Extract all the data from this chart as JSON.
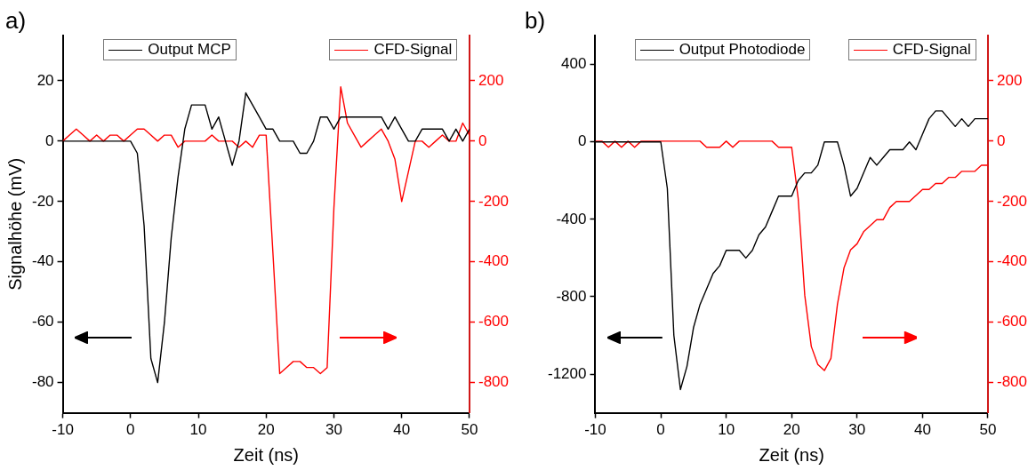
{
  "chart_data": [
    {
      "type": "line",
      "annotations": [
        "a)"
      ],
      "xlabel": "Zeit (ns)",
      "ylabel": "Signalhöhe (mV)",
      "x": [
        -10,
        -9,
        -8,
        -7,
        -6,
        -5,
        -4,
        -3,
        -2,
        -1,
        0,
        1,
        2,
        3,
        4,
        5,
        6,
        7,
        8,
        9,
        10,
        11,
        12,
        13,
        14,
        15,
        16,
        17,
        18,
        19,
        20,
        21,
        22,
        23,
        24,
        25,
        26,
        27,
        28,
        29,
        30,
        31,
        32,
        33,
        34,
        35,
        36,
        37,
        38,
        39,
        40,
        41,
        42,
        43,
        44,
        45,
        46,
        47,
        48,
        49,
        50
      ],
      "series": [
        {
          "name": "Output MCP",
          "color": "#000000",
          "values": [
            0,
            0,
            0,
            0,
            0,
            0,
            0,
            0,
            0,
            0,
            0,
            -4,
            -28,
            -72,
            -80,
            -60,
            -32,
            -12,
            4,
            12,
            12,
            12,
            4,
            8,
            0,
            -8,
            0,
            16,
            12,
            8,
            4,
            4,
            0,
            0,
            0,
            -4,
            -4,
            0,
            8,
            8,
            4,
            8,
            8,
            8,
            8,
            8,
            8,
            8,
            4,
            8,
            4,
            0,
            0,
            4,
            4,
            4,
            4,
            0,
            4,
            0,
            4
          ]
        },
        {
          "name": "CFD-Signal",
          "color": "#ff0000",
          "axis": "y2",
          "values": [
            0,
            20,
            40,
            20,
            0,
            20,
            0,
            20,
            20,
            0,
            20,
            40,
            40,
            20,
            0,
            20,
            20,
            -20,
            0,
            0,
            0,
            0,
            20,
            0,
            0,
            0,
            -20,
            0,
            -20,
            20,
            20,
            -370,
            -770,
            -750,
            -730,
            -730,
            -750,
            -750,
            -770,
            -750,
            -220,
            180,
            60,
            20,
            -20,
            0,
            20,
            40,
            0,
            -60,
            -200,
            -100,
            0,
            0,
            -20,
            0,
            20,
            0,
            0,
            60,
            20
          ]
        }
      ],
      "xlim": [
        -10,
        50
      ],
      "xticks": [
        -10,
        0,
        10,
        20,
        30,
        40,
        50
      ],
      "ylim": [
        -90,
        35
      ],
      "yticks": [
        -80,
        -60,
        -40,
        -20,
        0,
        20
      ],
      "y2lim": [
        -900,
        350
      ],
      "y2ticks": [
        -800,
        -600,
        -400,
        -200,
        0,
        200
      ],
      "legend": "top",
      "grid": false,
      "marker": "none",
      "line_style": "solid"
    },
    {
      "type": "line",
      "annotations": [
        "b)"
      ],
      "xlabel": "Zeit (ns)",
      "x": [
        -10,
        -9,
        -8,
        -7,
        -6,
        -5,
        -4,
        -3,
        -2,
        -1,
        0,
        1,
        2,
        3,
        4,
        5,
        6,
        7,
        8,
        9,
        10,
        11,
        12,
        13,
        14,
        15,
        16,
        17,
        18,
        19,
        20,
        21,
        22,
        23,
        24,
        25,
        26,
        27,
        28,
        29,
        30,
        31,
        32,
        33,
        34,
        35,
        36,
        37,
        38,
        39,
        40,
        41,
        42,
        43,
        44,
        45,
        46,
        47,
        48,
        49,
        50
      ],
      "series": [
        {
          "name": "Output Photodiode",
          "color": "#000000",
          "values": [
            0,
            0,
            0,
            0,
            0,
            0,
            0,
            0,
            0,
            0,
            0,
            -240,
            -1000,
            -1280,
            -1160,
            -960,
            -840,
            -760,
            -680,
            -640,
            -560,
            -560,
            -560,
            -600,
            -560,
            -480,
            -440,
            -360,
            -280,
            -280,
            -280,
            -200,
            -160,
            -160,
            -120,
            0,
            0,
            0,
            -120,
            -280,
            -240,
            -160,
            -80,
            -120,
            -80,
            -40,
            -40,
            -40,
            0,
            -40,
            40,
            120,
            160,
            160,
            120,
            80,
            120,
            80,
            120,
            120,
            120
          ]
        },
        {
          "name": "CFD-Signal",
          "color": "#ff0000",
          "axis": "y2",
          "values": [
            0,
            0,
            -20,
            0,
            -20,
            0,
            -20,
            0,
            0,
            0,
            0,
            0,
            0,
            0,
            0,
            0,
            0,
            -20,
            -20,
            -20,
            0,
            -20,
            0,
            0,
            0,
            0,
            0,
            0,
            -20,
            -20,
            -20,
            -190,
            -510,
            -680,
            -740,
            -760,
            -720,
            -540,
            -420,
            -360,
            -340,
            -300,
            -280,
            -260,
            -260,
            -220,
            -200,
            -200,
            -200,
            -180,
            -160,
            -160,
            -140,
            -140,
            -120,
            -120,
            -100,
            -100,
            -100,
            -80,
            -80
          ]
        }
      ],
      "xlim": [
        -10,
        50
      ],
      "xticks": [
        -10,
        0,
        10,
        20,
        30,
        40,
        50
      ],
      "ylim": [
        -1400,
        550
      ],
      "yticks": [
        -1200,
        -800,
        -400,
        0,
        400
      ],
      "y2lim": [
        -900,
        350
      ],
      "y2ticks": [
        -800,
        -600,
        -400,
        -200,
        0,
        200
      ],
      "legend": "top",
      "grid": false,
      "marker": "none",
      "line_style": "solid"
    }
  ]
}
